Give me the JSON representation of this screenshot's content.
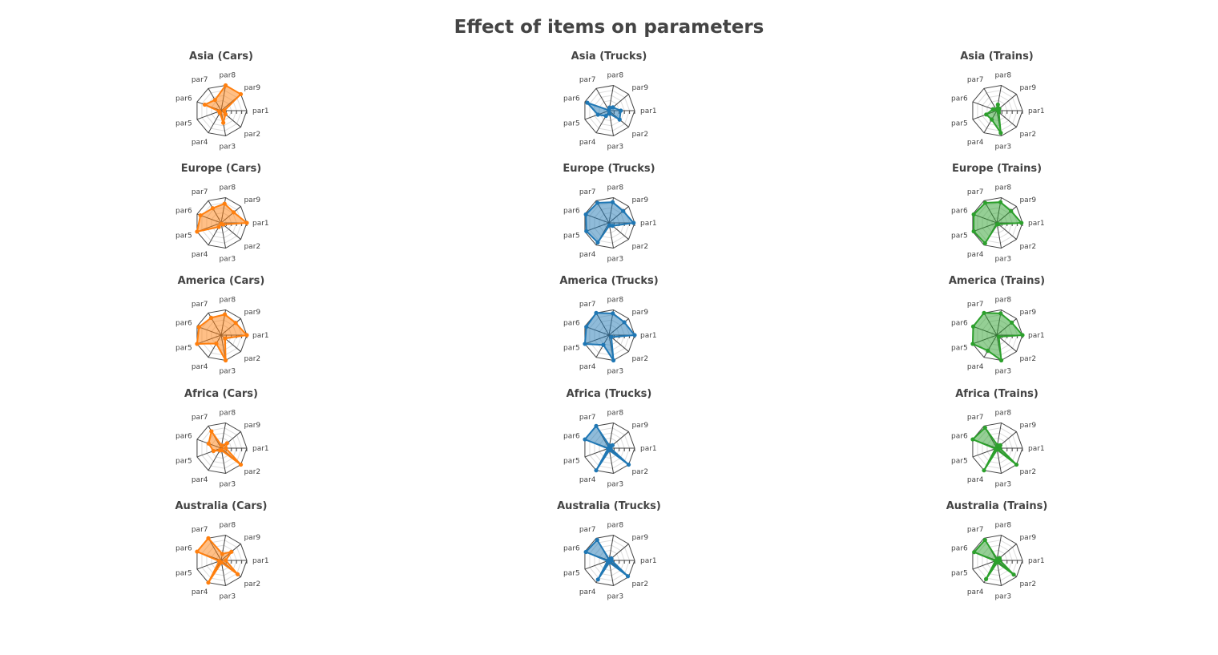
{
  "title": "Effect of items on parameters",
  "colors": {
    "Cars": "#ff7f0e",
    "Trucks": "#1f77b4",
    "Trains": "#2ca02c",
    "text": "#444444",
    "grid": "#dddddd"
  },
  "chart_data": {
    "type": "radar",
    "axes": [
      "par1",
      "par2",
      "par3",
      "par4",
      "par5",
      "par6",
      "par7",
      "par8",
      "par9"
    ],
    "rlim": [
      0,
      5
    ],
    "grid": true,
    "panels": [
      {
        "title": "Asia (Cars)",
        "region": "Asia",
        "item": "Cars",
        "values": [
          0.6,
          1.1,
          2.4,
          0.5,
          0.4,
          3.4,
          2.4,
          5.0,
          5.0
        ]
      },
      {
        "title": "Asia (Trucks)",
        "region": "Asia",
        "item": "Trucks",
        "values": [
          2.3,
          2.7,
          0.6,
          1.2,
          2.3,
          4.5,
          0.1,
          0.6,
          1.0
        ]
      },
      {
        "title": "Asia (Trains)",
        "region": "Asia",
        "item": "Trains",
        "values": [
          0.3,
          0.5,
          4.4,
          2.0,
          2.2,
          0.8,
          0.3,
          1.2,
          0.6
        ]
      },
      {
        "title": "Europe (Cars)",
        "region": "Europe",
        "item": "Cars",
        "values": [
          5.0,
          0.5,
          0.2,
          0.9,
          5.0,
          4.3,
          3.3,
          3.8,
          3.2
        ]
      },
      {
        "title": "Europe (Trucks)",
        "region": "Europe",
        "item": "Trucks",
        "values": [
          4.8,
          0.9,
          0.5,
          4.4,
          4.7,
          4.8,
          4.5,
          4.1,
          3.6
        ]
      },
      {
        "title": "Europe (Trains)",
        "region": "Europe",
        "item": "Trains",
        "values": [
          4.8,
          0.4,
          0.3,
          4.6,
          4.8,
          4.8,
          4.5,
          4.1,
          3.6
        ]
      },
      {
        "title": "America (Cars)",
        "region": "America",
        "item": "Cars",
        "values": [
          5.0,
          1.0,
          5.0,
          1.9,
          5.0,
          4.6,
          3.9,
          4.1,
          3.7
        ]
      },
      {
        "title": "America (Trucks)",
        "region": "America",
        "item": "Trucks",
        "values": [
          5.0,
          0.6,
          5.0,
          2.2,
          5.0,
          4.7,
          5.0,
          4.3,
          3.9
        ]
      },
      {
        "title": "America (Trains)",
        "region": "America",
        "item": "Trains",
        "values": [
          5.0,
          0.5,
          5.0,
          3.5,
          5.0,
          4.9,
          5.0,
          4.3,
          3.8
        ]
      },
      {
        "title": "Africa (Cars)",
        "region": "Africa",
        "item": "Cars",
        "values": [
          0.9,
          5.0,
          0.4,
          0.5,
          1.6,
          2.6,
          3.8,
          0.5,
          1.5
        ]
      },
      {
        "title": "Africa (Trucks)",
        "region": "Africa",
        "item": "Trucks",
        "values": [
          0.3,
          5.0,
          0.4,
          5.0,
          0.2,
          5.0,
          5.0,
          0.5,
          0.9
        ]
      },
      {
        "title": "Africa (Trains)",
        "region": "Africa",
        "item": "Trains",
        "values": [
          0.6,
          5.0,
          0.3,
          5.0,
          0.3,
          5.0,
          4.6,
          0.6,
          0.9
        ]
      },
      {
        "title": "Australia (Cars)",
        "region": "Australia",
        "item": "Cars",
        "values": [
          0.9,
          4.2,
          0.4,
          5.0,
          0.4,
          5.0,
          5.0,
          1.3,
          2.6
        ]
      },
      {
        "title": "Australia (Trucks)",
        "region": "Australia",
        "item": "Trucks",
        "values": [
          0.5,
          4.8,
          0.4,
          4.3,
          0.3,
          4.8,
          4.6,
          0.2,
          0.6
        ]
      },
      {
        "title": "Australia (Trains)",
        "region": "Australia",
        "item": "Trains",
        "values": [
          0.6,
          4.3,
          0.4,
          4.2,
          0.3,
          4.7,
          4.6,
          0.3,
          0.7
        ]
      }
    ]
  }
}
